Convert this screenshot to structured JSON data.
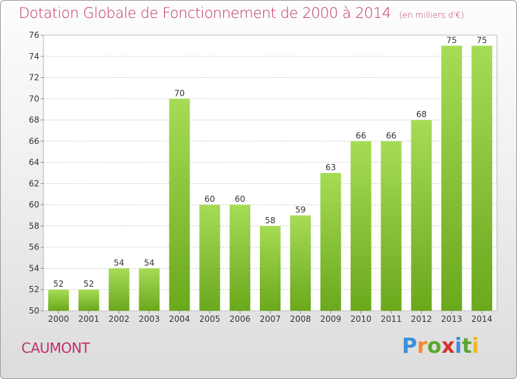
{
  "title": "Dotation Globale de Fonctionnement de 2000 à 2014",
  "units": "(en milliers d'€)",
  "commune": "CAUMONT",
  "logo": {
    "letters": [
      "P",
      "r",
      "o",
      "x",
      "i",
      "t",
      "i"
    ],
    "colors": [
      "#3a8fd8",
      "#f28c28",
      "#5aa72f",
      "#d8312b",
      "#3a8fd8",
      "#5aa72f",
      "#f2b521"
    ]
  },
  "colors": {
    "title": "#c0306a",
    "bar_light": "#a6dc55",
    "bar_dark": "#6aa81c",
    "grid": "#c8c8c8"
  },
  "chart_data": {
    "type": "bar",
    "title": "Dotation Globale de Fonctionnement de 2000 à 2014",
    "categories": [
      "2000",
      "2001",
      "2002",
      "2003",
      "2004",
      "2005",
      "2006",
      "2007",
      "2008",
      "2009",
      "2010",
      "2011",
      "2012",
      "2013",
      "2014"
    ],
    "values": [
      52,
      52,
      54,
      54,
      70,
      60,
      60,
      58,
      59,
      63,
      66,
      66,
      68,
      75,
      75
    ],
    "xlabel": "",
    "ylabel": "",
    "ylim": [
      50,
      76
    ],
    "yticks": [
      50,
      52,
      54,
      56,
      58,
      60,
      62,
      64,
      66,
      68,
      70,
      72,
      74,
      76
    ],
    "grid": true,
    "legend": "none"
  }
}
